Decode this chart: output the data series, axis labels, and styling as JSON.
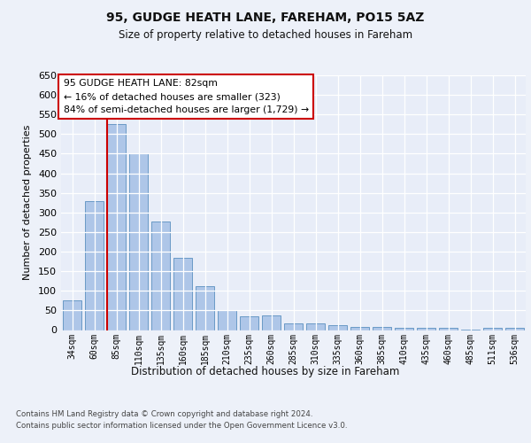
{
  "title1": "95, GUDGE HEATH LANE, FAREHAM, PO15 5AZ",
  "title2": "Size of property relative to detached houses in Fareham",
  "xlabel": "Distribution of detached houses by size in Fareham",
  "ylabel": "Number of detached properties",
  "categories": [
    "34sqm",
    "60sqm",
    "85sqm",
    "110sqm",
    "135sqm",
    "160sqm",
    "185sqm",
    "210sqm",
    "235sqm",
    "260sqm",
    "285sqm",
    "310sqm",
    "335sqm",
    "360sqm",
    "385sqm",
    "410sqm",
    "435sqm",
    "460sqm",
    "485sqm",
    "511sqm",
    "536sqm"
  ],
  "values": [
    75,
    330,
    525,
    450,
    277,
    185,
    113,
    52,
    35,
    37,
    18,
    17,
    13,
    9,
    8,
    5,
    5,
    5,
    1,
    5,
    5
  ],
  "bar_color": "#aec6e8",
  "bar_edge_color": "#5a8fc0",
  "highlight_line_index": 2,
  "annotation_text": "95 GUDGE HEATH LANE: 82sqm\n← 16% of detached houses are smaller (323)\n84% of semi-detached houses are larger (1,729) →",
  "annotation_box_color": "#ffffff",
  "annotation_box_edge_color": "#cc0000",
  "vline_color": "#cc0000",
  "background_color": "#edf1f9",
  "plot_bg_color": "#e8edf8",
  "grid_color": "#ffffff",
  "ylim": [
    0,
    650
  ],
  "yticks": [
    0,
    50,
    100,
    150,
    200,
    250,
    300,
    350,
    400,
    450,
    500,
    550,
    600,
    650
  ],
  "footer_line1": "Contains HM Land Registry data © Crown copyright and database right 2024.",
  "footer_line2": "Contains public sector information licensed under the Open Government Licence v3.0."
}
